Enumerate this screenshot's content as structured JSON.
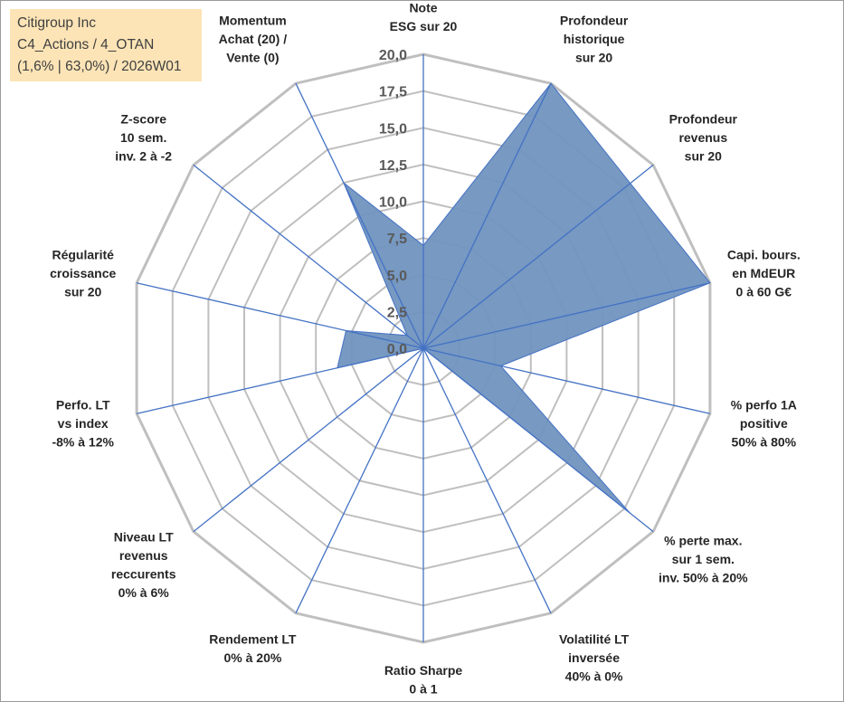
{
  "info": {
    "line1": "Citigroup Inc",
    "line2": "C4_Actions / 4_OTAN",
    "line3": "(1,6% | 63,0%) / 2026W01"
  },
  "colors": {
    "fill": "#7094BF",
    "stroke": "#4472C4",
    "grid": "#BFBFBF",
    "background": "#FFFFFF",
    "info_box": "#FCE4B6"
  },
  "chart_data": {
    "type": "radar",
    "title": "Citigroup Inc",
    "rmin": 0,
    "rmax": 20,
    "tick_step": 2.5,
    "tick_labels": [
      "0,0",
      "2,5",
      "5,0",
      "7,5",
      "10,0",
      "12,5",
      "15,0",
      "17,5",
      "20,0"
    ],
    "categories": [
      [
        "Note",
        "ESG sur 20"
      ],
      [
        "Profondeur",
        "historique",
        "sur 20"
      ],
      [
        "Profondeur",
        "revenus",
        "sur 20"
      ],
      [
        "Capi. bours.",
        "en MdEUR",
        "0 à 60 G€"
      ],
      [
        "% perfo 1A",
        "positive",
        "50% à 80%"
      ],
      [
        "% perte max.",
        "sur 1 sem.",
        "inv. 50% à 20%"
      ],
      [
        "Volatilité LT",
        "inversée",
        "40% à 0%"
      ],
      [
        "Ratio Sharpe",
        "0 à 1"
      ],
      [
        "Rendement LT",
        "0% à 20%"
      ],
      [
        "Niveau LT",
        "revenus",
        "reccurents",
        "0% à 6%"
      ],
      [
        "Perfo. LT",
        "vs index",
        "-8% à 12%"
      ],
      [
        "Régularité",
        "croissance",
        "sur 20"
      ],
      [
        "Z-score",
        "10 sem.",
        "inv. 2 à -2"
      ],
      [
        "Momentum",
        "Achat (20) /",
        "Vente (0)"
      ]
    ],
    "series": [
      {
        "name": "Citigroup Inc",
        "values": [
          7,
          20,
          18,
          20,
          5.4,
          18,
          0,
          0,
          0.5,
          0,
          6,
          5.4,
          1.4,
          12.5
        ]
      }
    ]
  }
}
